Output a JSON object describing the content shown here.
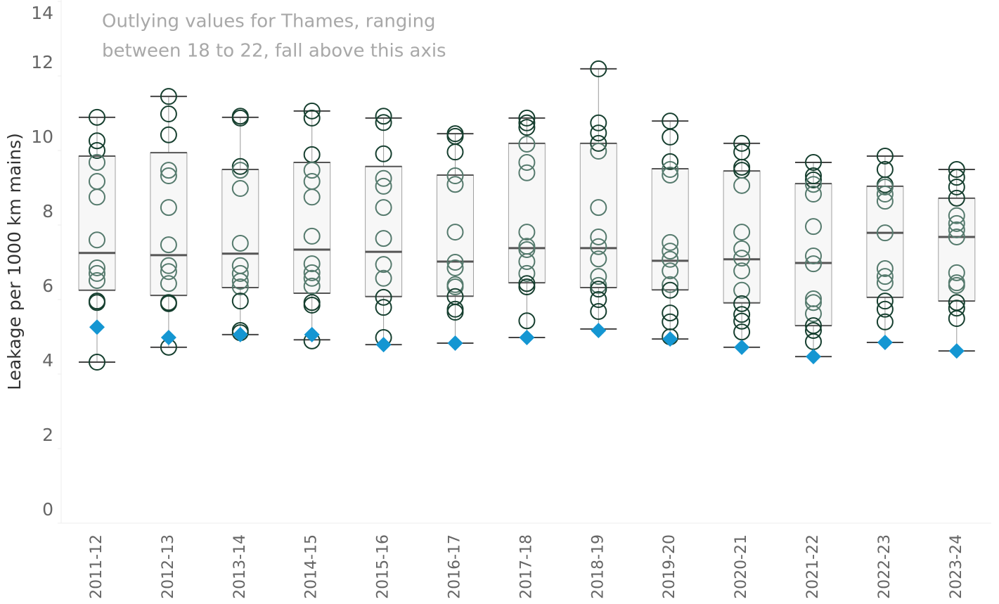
{
  "chart_data": {
    "type": "box",
    "ylabel": "Leakage per 1000 km mains)",
    "annotation": [
      "Outlying values for Thames, ranging",
      "between 18 to 22, fall above this axis"
    ],
    "categories": [
      "2011-12",
      "2012-13",
      "2013-14",
      "2014-15",
      "2015-16",
      "2016-17",
      "2017-18",
      "2018-19",
      "2019-20",
      "2020-21",
      "2021-22",
      "2022-23",
      "2023-24"
    ],
    "boxes": [
      {
        "whislo": 4.32,
        "q1": 6.25,
        "med": 7.25,
        "q3": 9.85,
        "whishi": 10.89
      },
      {
        "whislo": 4.72,
        "q1": 6.11,
        "med": 7.19,
        "q3": 9.94,
        "whishi": 11.45
      },
      {
        "whislo": 5.06,
        "q1": 6.32,
        "med": 7.23,
        "q3": 9.49,
        "whishi": 10.89
      },
      {
        "whislo": 4.92,
        "q1": 6.17,
        "med": 7.34,
        "q3": 9.68,
        "whishi": 11.06
      },
      {
        "whislo": 4.79,
        "q1": 6.08,
        "med": 7.28,
        "q3": 9.57,
        "whishi": 10.87
      },
      {
        "whislo": 4.83,
        "q1": 6.09,
        "med": 7.02,
        "q3": 9.34,
        "whishi": 10.45
      },
      {
        "whislo": 4.98,
        "q1": 6.45,
        "med": 7.38,
        "q3": 10.19,
        "whishi": 10.87
      },
      {
        "whislo": 5.21,
        "q1": 6.32,
        "med": 7.38,
        "q3": 10.19,
        "whishi": 12.19
      },
      {
        "whislo": 4.94,
        "q1": 6.26,
        "med": 7.04,
        "q3": 9.51,
        "whishi": 10.79
      },
      {
        "whislo": 4.72,
        "q1": 5.91,
        "med": 7.08,
        "q3": 9.45,
        "whishi": 10.19
      },
      {
        "whislo": 4.47,
        "q1": 5.3,
        "med": 6.98,
        "q3": 9.11,
        "whishi": 9.68
      },
      {
        "whislo": 4.85,
        "q1": 6.06,
        "med": 7.79,
        "q3": 9.04,
        "whishi": 9.85
      },
      {
        "whislo": 4.62,
        "q1": 5.96,
        "med": 7.68,
        "q3": 8.72,
        "whishi": 9.49
      }
    ],
    "points": [
      [
        10.89,
        10.26,
        10.0,
        9.68,
        9.17,
        8.75,
        7.6,
        6.85,
        6.7,
        6.51,
        5.96,
        5.92,
        4.32
      ],
      [
        11.45,
        10.98,
        10.42,
        9.47,
        9.32,
        8.47,
        7.47,
        6.91,
        6.75,
        6.43,
        5.92,
        5.89,
        4.72
      ],
      [
        10.92,
        10.87,
        9.57,
        9.47,
        8.98,
        7.51,
        6.91,
        6.7,
        6.49,
        6.34,
        5.96,
        5.17,
        5.11
      ],
      [
        11.06,
        10.87,
        9.89,
        9.47,
        9.17,
        8.75,
        7.7,
        6.96,
        6.72,
        6.57,
        6.36,
        5.92,
        5.85,
        4.89
      ],
      [
        10.92,
        10.75,
        9.91,
        9.25,
        9.04,
        8.47,
        7.64,
        6.94,
        6.57,
        6.06,
        5.79,
        4.98
      ],
      [
        10.45,
        10.38,
        9.96,
        9.32,
        9.09,
        7.81,
        7.0,
        6.85,
        6.4,
        6.34,
        6.08,
        5.74,
        5.66
      ],
      [
        10.87,
        10.74,
        10.62,
        10.17,
        9.68,
        9.4,
        7.81,
        7.43,
        7.34,
        7.02,
        6.7,
        6.43,
        6.34,
        5.43
      ],
      [
        12.19,
        10.74,
        10.47,
        10.19,
        9.98,
        8.47,
        7.68,
        7.42,
        7.09,
        6.62,
        6.38,
        6.28,
        6.0,
        5.68
      ],
      [
        10.79,
        10.36,
        9.7,
        9.49,
        9.34,
        7.53,
        7.3,
        7.08,
        6.77,
        6.4,
        6.25,
        5.64,
        5.4,
        5.0
      ],
      [
        10.19,
        9.96,
        9.55,
        9.47,
        9.06,
        7.81,
        7.36,
        7.11,
        6.77,
        6.25,
        5.89,
        5.6,
        5.42,
        5.13
      ],
      [
        9.68,
        9.32,
        9.21,
        9.09,
        8.83,
        7.96,
        7.17,
        6.96,
        6.02,
        5.92,
        5.62,
        5.3,
        5.17,
        4.87
      ],
      [
        9.85,
        9.49,
        9.08,
        9.02,
        8.83,
        8.64,
        7.79,
        6.83,
        6.62,
        6.45,
        5.96,
        5.74,
        5.4
      ],
      [
        9.49,
        9.28,
        9.02,
        8.72,
        8.25,
        8.04,
        7.87,
        7.68,
        6.72,
        6.45,
        6.38,
        5.92,
        5.77,
        5.49
      ]
    ],
    "highlight": [
      5.26,
      4.98,
      5.06,
      5.06,
      4.79,
      4.83,
      4.98,
      5.17,
      4.94,
      4.72,
      4.47,
      4.85,
      4.62
    ],
    "point_color": "#163f2f",
    "point_inner_color": "#557a6d",
    "highlight_color": "#1496d2",
    "box_fill": "#f7f7f7",
    "box_stroke": "#a0a0a0",
    "median_color": "#555555",
    "ylim": [
      0,
      14
    ],
    "yticks": [
      0,
      2,
      4,
      6,
      8,
      10,
      12,
      14
    ]
  }
}
